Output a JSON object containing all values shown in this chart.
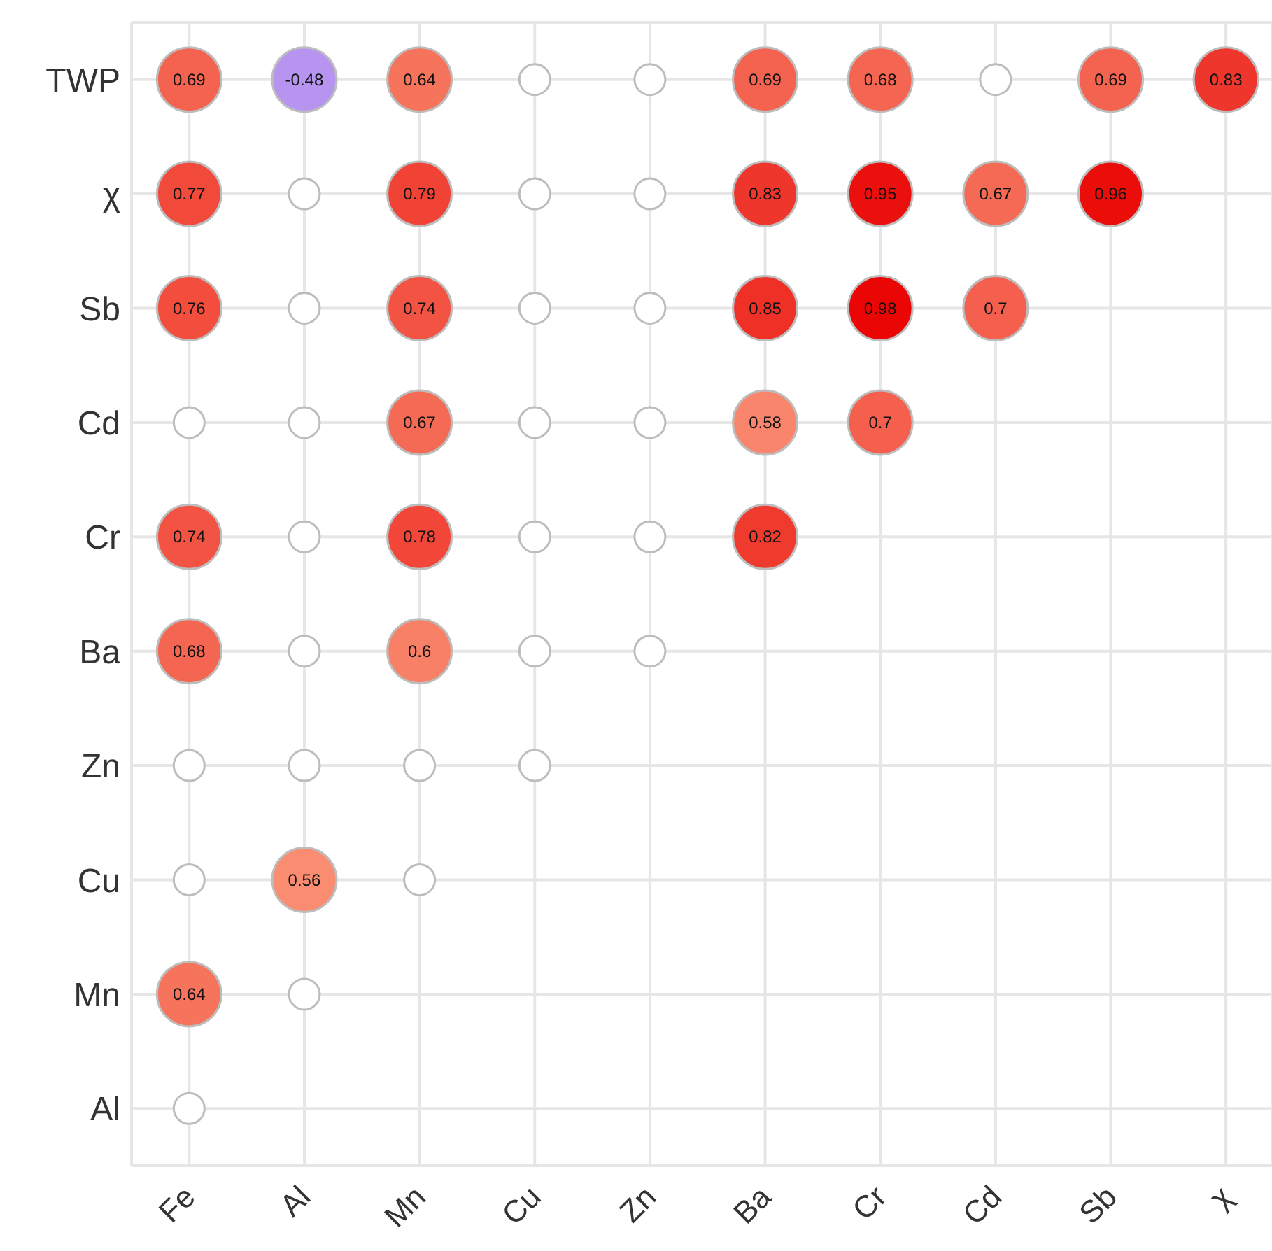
{
  "chart_data": {
    "type": "heatmap",
    "categories": [
      "Fe",
      "Al",
      "Mn",
      "Cu",
      "Zn",
      "Ba",
      "Cr",
      "Cd",
      "Sb",
      "χ"
    ],
    "y_categories": [
      "TWP",
      "χ",
      "Sb",
      "Cd",
      "Cr",
      "Ba",
      "Zn",
      "Cu",
      "Mn",
      "Al"
    ],
    "cells": [
      [
        0.69,
        -0.48,
        0.64,
        null,
        null,
        0.69,
        0.68,
        null,
        0.69,
        0.83
      ],
      [
        0.77,
        null,
        0.79,
        null,
        null,
        0.83,
        0.95,
        0.67,
        0.96,
        null
      ],
      [
        0.76,
        null,
        0.74,
        null,
        null,
        0.85,
        0.98,
        0.7,
        null,
        null
      ],
      [
        null,
        null,
        0.67,
        null,
        null,
        0.58,
        0.7,
        null,
        null,
        null
      ],
      [
        0.74,
        null,
        0.78,
        null,
        null,
        0.82,
        null,
        null,
        null,
        null
      ],
      [
        0.68,
        null,
        0.6,
        null,
        null,
        null,
        null,
        null,
        null,
        null
      ],
      [
        null,
        null,
        null,
        null,
        null,
        null,
        null,
        null,
        null,
        null
      ],
      [
        null,
        0.56,
        null,
        null,
        null,
        null,
        null,
        null,
        null,
        null
      ],
      [
        0.64,
        null,
        null,
        null,
        null,
        null,
        null,
        null,
        null,
        null
      ],
      [
        null,
        null,
        null,
        null,
        null,
        null,
        null,
        null,
        null,
        null
      ]
    ],
    "data_labels": true,
    "grid": true
  }
}
